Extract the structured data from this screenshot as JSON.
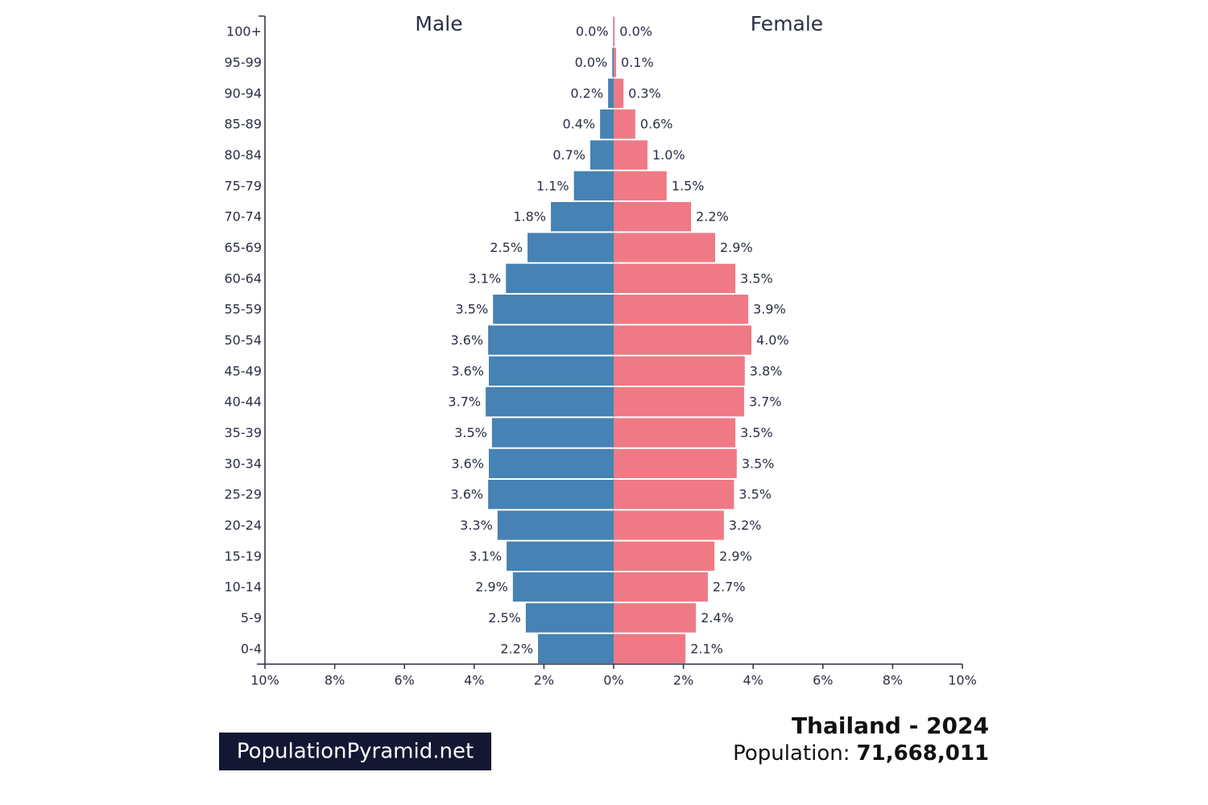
{
  "chart_data": {
    "type": "pyramid",
    "title": "Thailand - 2024",
    "population_label": "Population:",
    "population": "71,668,011",
    "brand": "PopulationPyramid.net",
    "categories": [
      "100+",
      "95-99",
      "90-94",
      "85-89",
      "80-84",
      "75-79",
      "70-74",
      "65-69",
      "60-64",
      "55-59",
      "50-54",
      "45-49",
      "40-44",
      "35-39",
      "30-34",
      "25-29",
      "20-24",
      "15-19",
      "10-14",
      "5-9",
      "0-4"
    ],
    "series": [
      {
        "name": "Male",
        "color": "#4682b4",
        "side": "left",
        "values": [
          0.01,
          0.04,
          0.16,
          0.39,
          0.67,
          1.14,
          1.8,
          2.47,
          3.09,
          3.46,
          3.6,
          3.58,
          3.67,
          3.49,
          3.58,
          3.6,
          3.33,
          3.07,
          2.89,
          2.52,
          2.17
        ],
        "value_labels": [
          "0.0%",
          "0.0%",
          "0.2%",
          "0.4%",
          "0.7%",
          "1.1%",
          "1.8%",
          "2.5%",
          "3.1%",
          "3.5%",
          "3.6%",
          "3.6%",
          "3.7%",
          "3.5%",
          "3.6%",
          "3.6%",
          "3.3%",
          "3.1%",
          "2.9%",
          "2.5%",
          "2.2%"
        ]
      },
      {
        "name": "Female",
        "color": "#ef7a85",
        "side": "right",
        "values": [
          0.03,
          0.07,
          0.28,
          0.62,
          0.97,
          1.52,
          2.22,
          2.91,
          3.49,
          3.86,
          3.95,
          3.76,
          3.74,
          3.49,
          3.53,
          3.45,
          3.16,
          2.89,
          2.7,
          2.36,
          2.06
        ],
        "value_labels": [
          "0.0%",
          "0.1%",
          "0.3%",
          "0.6%",
          "1.0%",
          "1.5%",
          "2.2%",
          "2.9%",
          "3.5%",
          "3.9%",
          "4.0%",
          "3.8%",
          "3.7%",
          "3.5%",
          "3.5%",
          "3.5%",
          "3.2%",
          "2.9%",
          "2.7%",
          "2.4%",
          "2.1%"
        ]
      }
    ],
    "xlim": [
      -10,
      10
    ],
    "xticks": [
      {
        "value": -10,
        "label": "10%"
      },
      {
        "value": -8,
        "label": "8%"
      },
      {
        "value": -6,
        "label": "6%"
      },
      {
        "value": -4,
        "label": "4%"
      },
      {
        "value": -2,
        "label": "2%"
      },
      {
        "value": 0,
        "label": "0%"
      },
      {
        "value": 2,
        "label": "2%"
      },
      {
        "value": 4,
        "label": "4%"
      },
      {
        "value": 6,
        "label": "6%"
      },
      {
        "value": 8,
        "label": "8%"
      },
      {
        "value": 10,
        "label": "10%"
      }
    ]
  }
}
